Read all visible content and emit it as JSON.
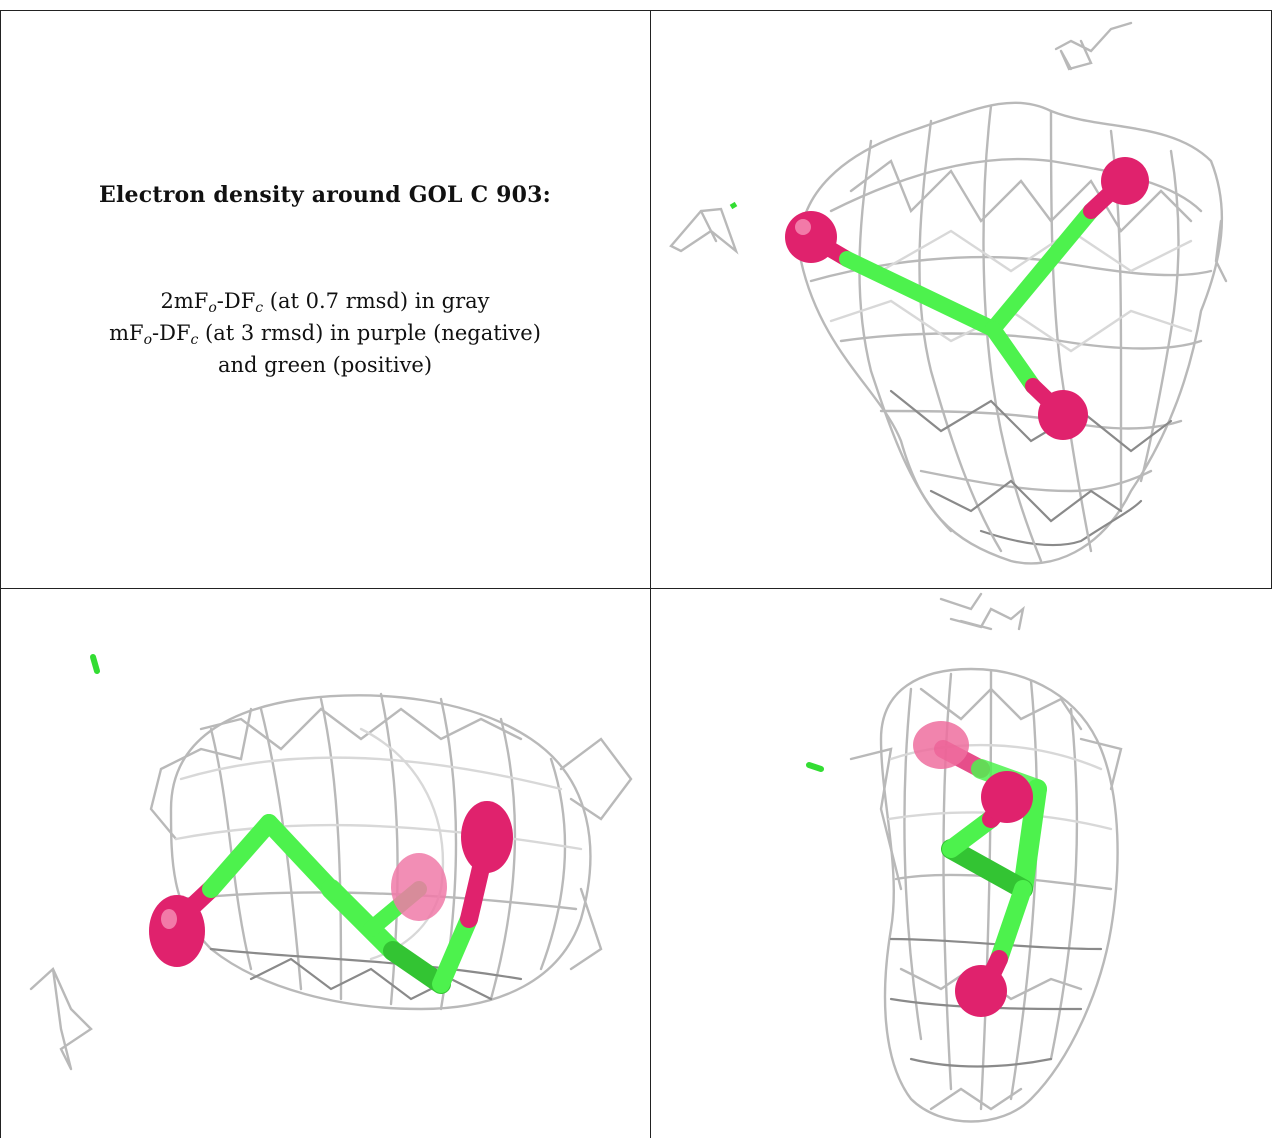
{
  "caption": {
    "title": "Electron density around GOL C 903:",
    "line1_prefix": "2mF",
    "line1_sub_o": "o",
    "line1_mid": "-DF",
    "line1_sub_c": "c",
    "line1_suffix": " (at 0.7 rmsd) in gray",
    "line2_prefix": "mF",
    "line2_sub_o": "o",
    "line2_mid": "-DF",
    "line2_sub_c": "c",
    "line2_suffix": " (at 3 rmsd) in purple (negative)",
    "line3": "and green (positive)"
  },
  "colors": {
    "mesh": "#b9b9b9",
    "carbon_bond": "#4df24d",
    "oxygen_atom": "#e0226d",
    "positive_density": "#33dd33",
    "grid_line": "#222222"
  },
  "panels": [
    {
      "view": "top-right"
    },
    {
      "view": "bottom-left"
    },
    {
      "view": "bottom-right"
    }
  ]
}
